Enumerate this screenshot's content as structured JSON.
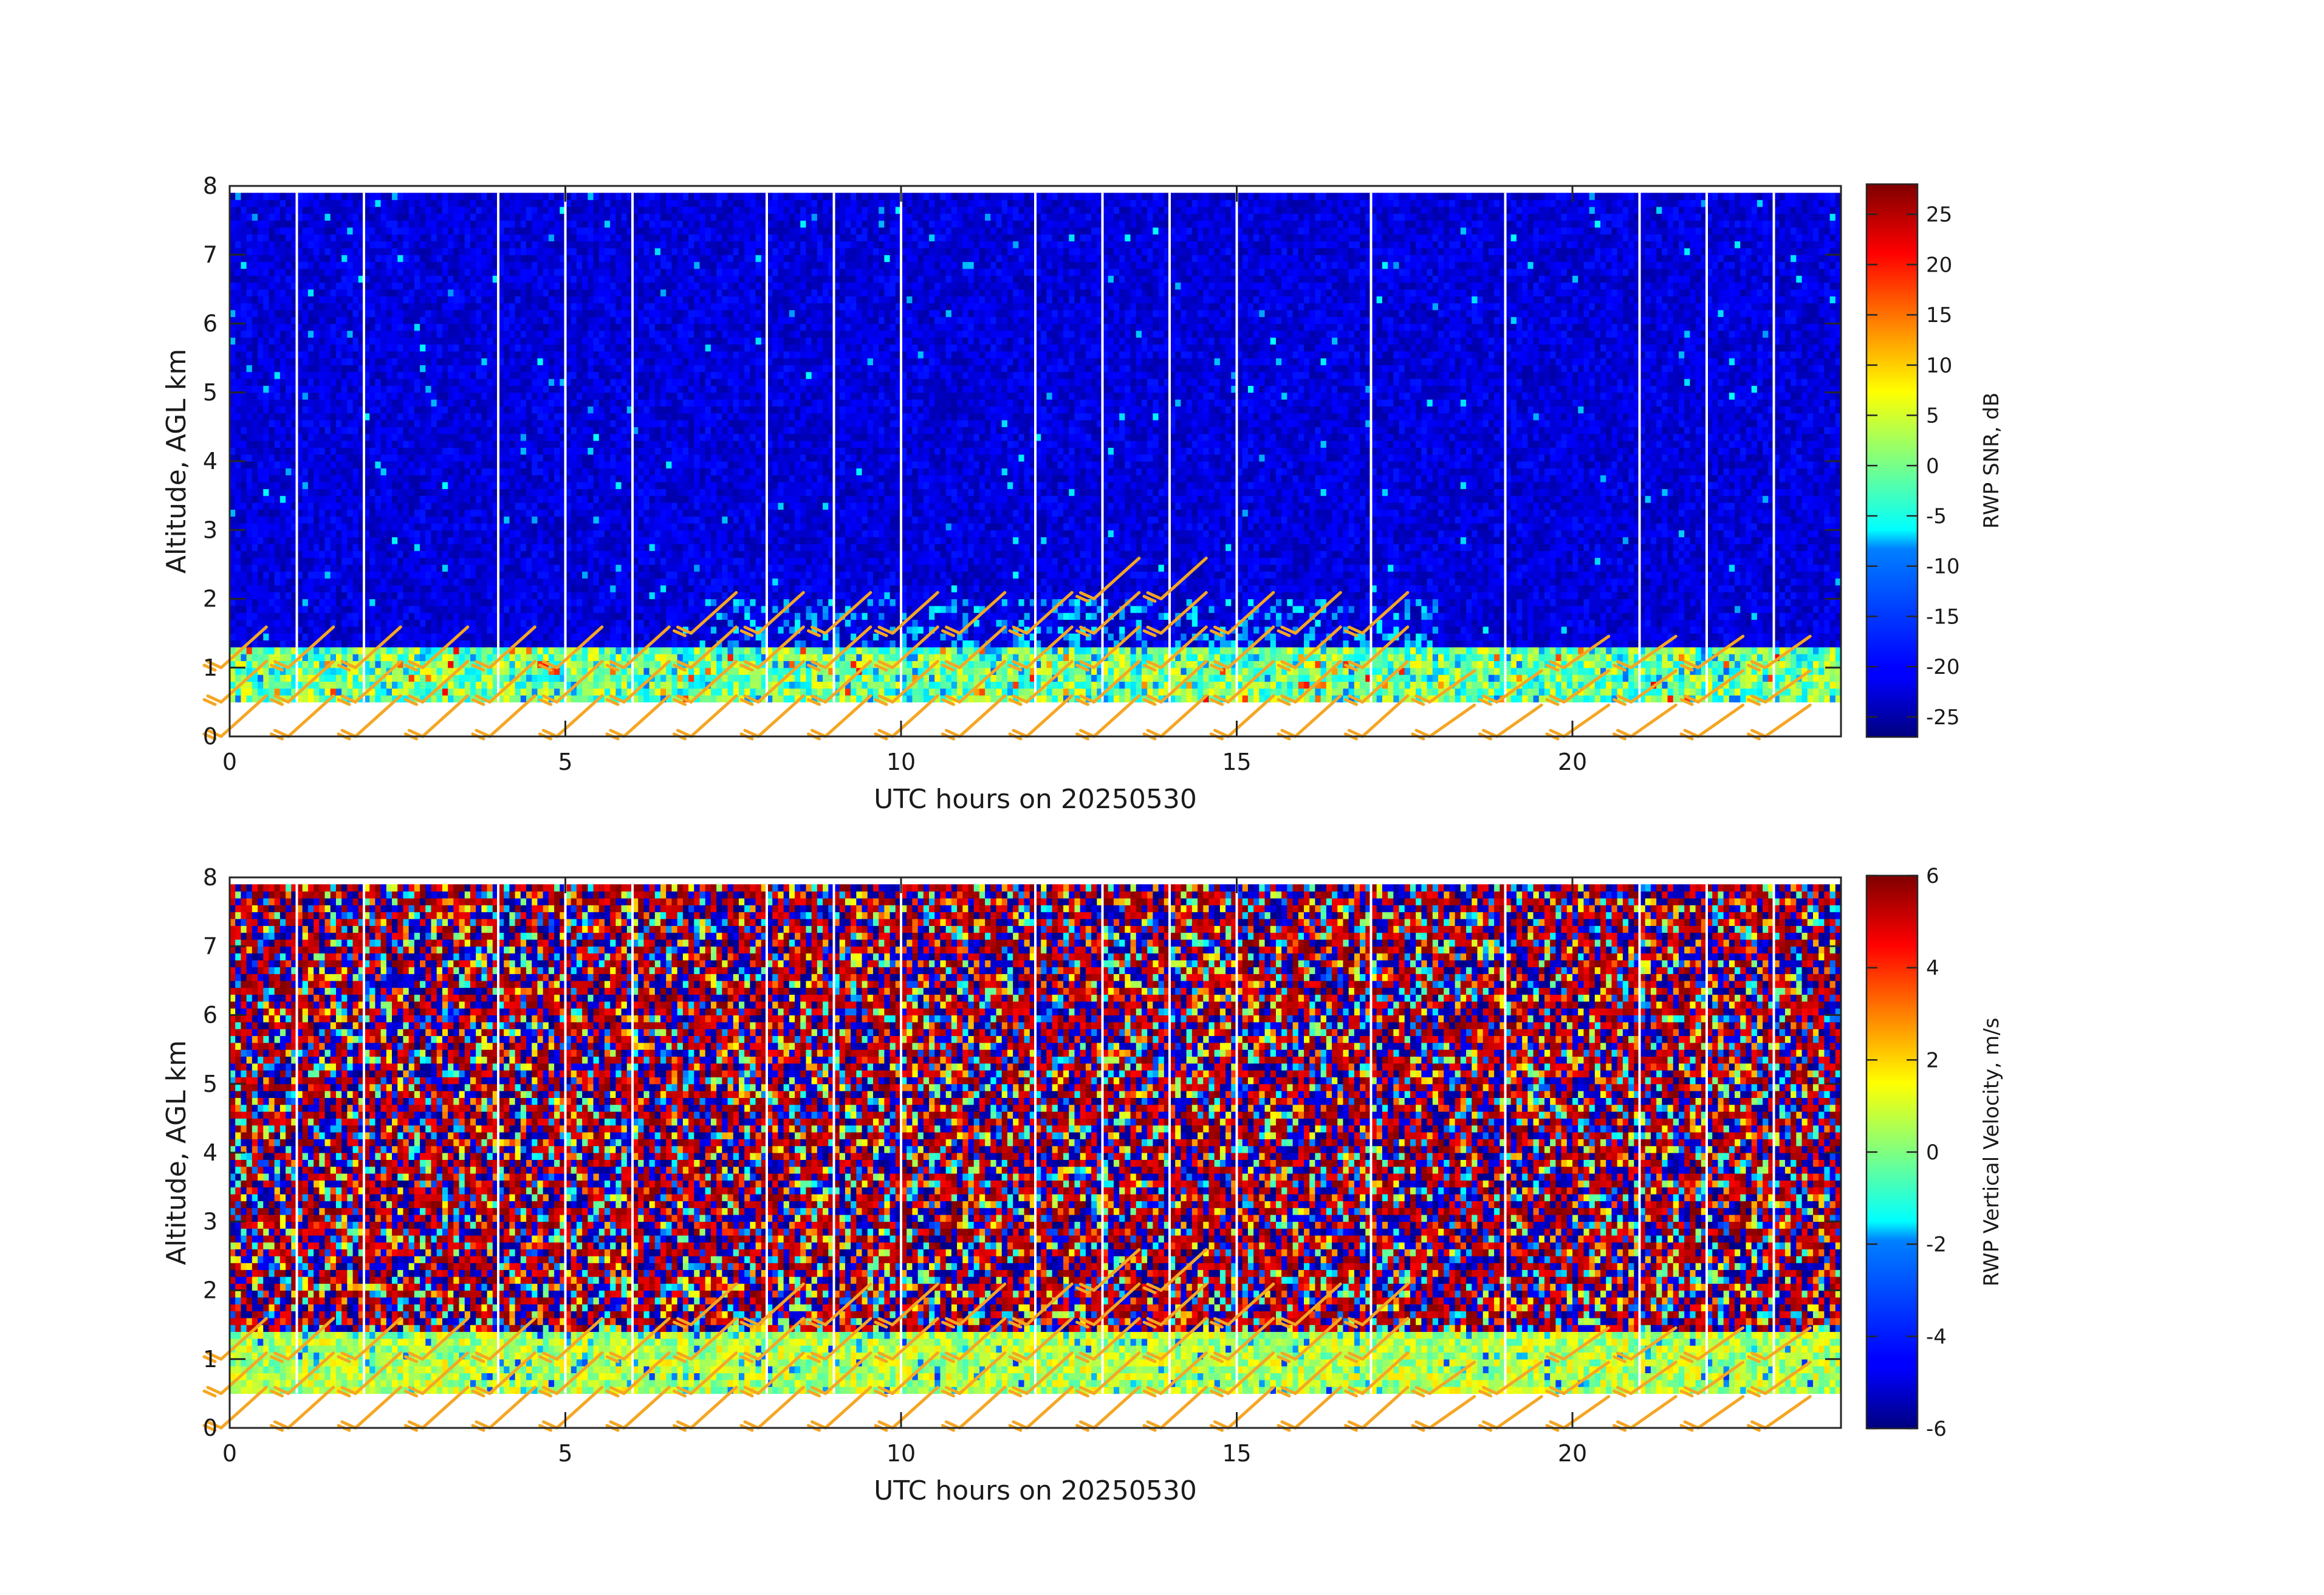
{
  "chart_data": [
    {
      "type": "heatmap",
      "name": "snr",
      "xlabel": "UTC hours on 20250530",
      "ylabel": "Altitude, AGL km",
      "colorbar_label": "RWP SNR, dB",
      "xlim": [
        0,
        24
      ],
      "ylim": [
        0,
        8
      ],
      "x_ticks": [
        0,
        5,
        10,
        15,
        20
      ],
      "y_ticks": [
        0,
        1,
        2,
        3,
        4,
        5,
        6,
        7,
        8
      ],
      "colorbar_range": [
        -27,
        28
      ],
      "colorbar_ticks": [
        -25,
        -20,
        -15,
        -10,
        -5,
        0,
        5,
        10,
        15,
        20,
        25
      ],
      "colormap": "jet",
      "data_altitude_range_km": [
        0.5,
        7.9
      ],
      "gap_hours": [
        1,
        2,
        4,
        5,
        6,
        8,
        9,
        10,
        12,
        13,
        14,
        15,
        17,
        19,
        21,
        22,
        23
      ],
      "boundary_layer_top_km": 1.3,
      "background_level_db": -22,
      "boundary_layer_level_db": 0,
      "grid": false
    },
    {
      "type": "heatmap",
      "name": "vertical_velocity",
      "xlabel": "UTC hours on 20250530",
      "ylabel": "Altitude, AGL km",
      "colorbar_label": "RWP Vertical Velocity, m/s",
      "xlim": [
        0,
        24
      ],
      "ylim": [
        0,
        8
      ],
      "x_ticks": [
        0,
        5,
        10,
        15,
        20
      ],
      "y_ticks": [
        0,
        1,
        2,
        3,
        4,
        5,
        6,
        7,
        8
      ],
      "colorbar_range": [
        -6,
        6
      ],
      "colorbar_ticks": [
        -6,
        -4,
        -2,
        0,
        2,
        4,
        6
      ],
      "colormap": "jet",
      "data_altitude_range_km": [
        0.5,
        7.9
      ],
      "gap_hours": [
        1,
        2,
        4,
        5,
        6,
        8,
        9,
        10,
        12,
        13,
        14,
        15,
        17,
        19,
        21,
        22,
        23
      ],
      "boundary_layer_top_km": 1.4,
      "boundary_layer_level_ms": 0.5,
      "grid": false
    }
  ],
  "wind_barbs": {
    "color": "#f5a623",
    "altitudes_km": [
      0,
      0.5,
      1.0,
      1.5,
      2.0
    ],
    "hours": [
      0,
      1,
      2,
      3,
      4,
      5,
      6,
      7,
      8,
      9,
      10,
      11,
      12,
      13,
      14,
      15,
      16,
      17,
      18,
      19,
      20,
      21,
      22,
      23
    ],
    "max_altitude_by_hour_km": [
      1.0,
      1.0,
      1.0,
      1.0,
      1.0,
      1.0,
      1.0,
      1.5,
      1.5,
      1.5,
      1.5,
      1.5,
      1.5,
      2.0,
      2.0,
      1.5,
      1.5,
      1.5,
      0.5,
      0.5,
      1.0,
      1.0,
      1.0,
      1.0
    ]
  }
}
